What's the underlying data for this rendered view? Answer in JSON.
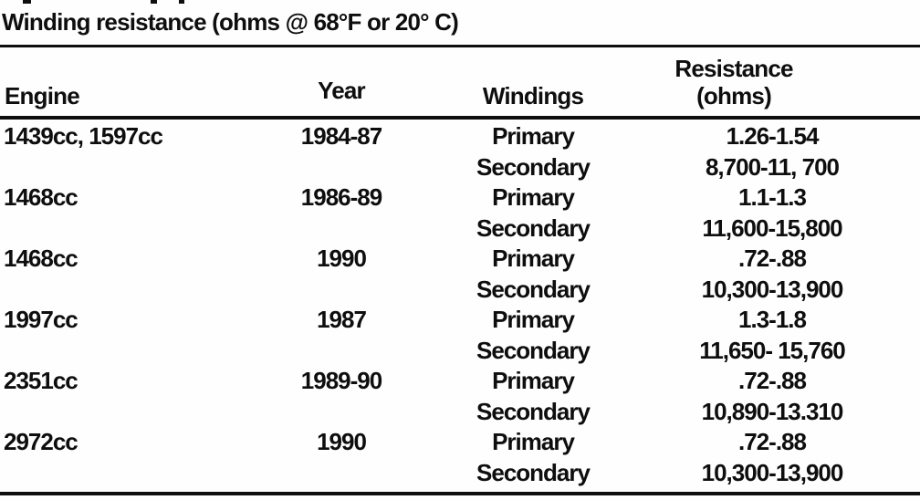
{
  "title": "Winding resistance (ohms @ 68°F or 20° C)",
  "colors": {
    "ink": "#0e0e0e",
    "paper": "#fefefe"
  },
  "table": {
    "headers": {
      "engine": "Engine",
      "year": "Year",
      "windings": "Windings",
      "resistance_line1": "Resistance",
      "resistance_line2": "(ohms)"
    },
    "rows": [
      {
        "engine": "1439cc, 1597cc",
        "year": "1984-87",
        "windings": "Primary",
        "resistance": "1.26-1.54"
      },
      {
        "engine": "",
        "year": "",
        "windings": "Secondary",
        "resistance": "8,700-11, 700"
      },
      {
        "engine": "1468cc",
        "year": "1986-89",
        "windings": "Primary",
        "resistance": "1.1-1.3"
      },
      {
        "engine": "",
        "year": "",
        "windings": "Secondary",
        "resistance": "11,600-15,800"
      },
      {
        "engine": "1468cc",
        "year": "1990",
        "windings": "Primary",
        "resistance": ".72-.88"
      },
      {
        "engine": "",
        "year": "",
        "windings": "Secondary",
        "resistance": "10,300-13,900"
      },
      {
        "engine": "1997cc",
        "year": "1987",
        "windings": "Primary",
        "resistance": "1.3-1.8"
      },
      {
        "engine": "",
        "year": "",
        "windings": "Secondary",
        "resistance": "11,650- 15,760"
      },
      {
        "engine": "2351cc",
        "year": "1989-90",
        "windings": "Primary",
        "resistance": ".72-.88"
      },
      {
        "engine": "",
        "year": "",
        "windings": "Secondary",
        "resistance": "10,890-13.310"
      },
      {
        "engine": "2972cc",
        "year": "1990",
        "windings": "Primary",
        "resistance": ".72-.88"
      },
      {
        "engine": "",
        "year": "",
        "windings": "Secondary",
        "resistance": "10,300-13,900"
      }
    ]
  }
}
